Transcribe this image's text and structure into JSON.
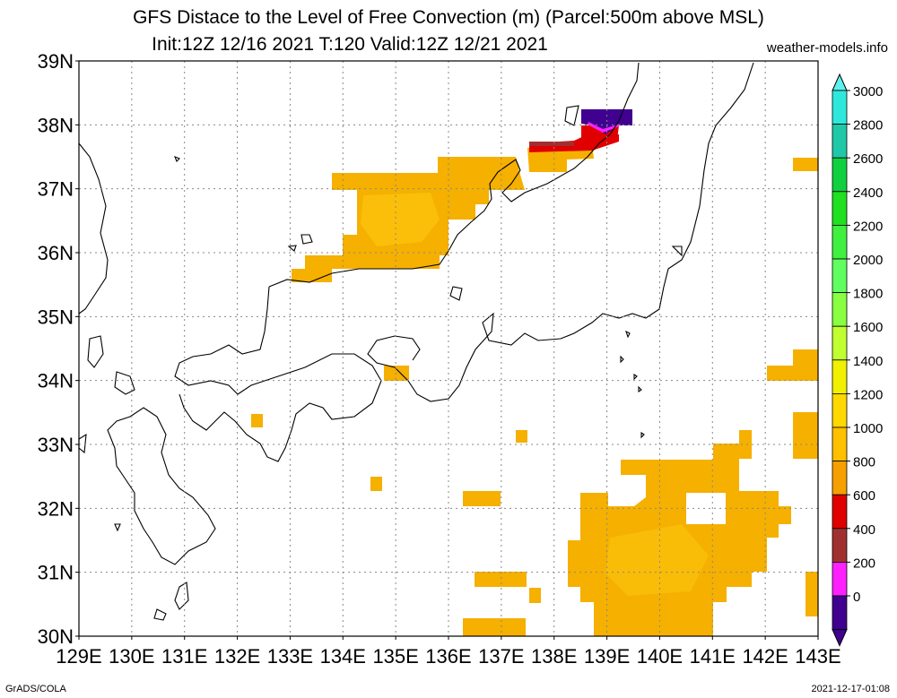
{
  "title": {
    "line1": "GFS Distace to the Level of Free Convection (m) (Parcel:500m above MSL)",
    "line2": "Init:12Z 12/16 2021 T:120 Valid:12Z 12/21 2021"
  },
  "site": "weather-models.info",
  "footer": {
    "left": "GrADS/COLA",
    "right": "2021-12-17-01:08"
  },
  "map": {
    "lon_labels": [
      "129E",
      "130E",
      "131E",
      "132E",
      "133E",
      "134E",
      "135E",
      "136E",
      "137E",
      "138E",
      "139E",
      "140E",
      "141E",
      "142E",
      "143E"
    ],
    "lat_labels": [
      "39N",
      "38N",
      "37N",
      "36N",
      "35N",
      "34N",
      "33N",
      "32N",
      "31N",
      "30N"
    ],
    "lon_range": [
      129,
      143
    ],
    "lat_range": [
      30,
      39
    ],
    "grid": "dotted"
  },
  "colorbar": {
    "labels": [
      "3000",
      "2800",
      "2600",
      "2400",
      "2200",
      "2000",
      "1800",
      "1600",
      "1400",
      "1200",
      "1000",
      "800",
      "600",
      "400",
      "200",
      "0"
    ],
    "colors": [
      "#2fe8dc",
      "#20c8a8",
      "#10d040",
      "#20e020",
      "#40f040",
      "#60ff60",
      "#88ff40",
      "#c0ff30",
      "#f0f000",
      "#ffd800",
      "#ffc000",
      "#f5a000",
      "#e00000",
      "#a03030",
      "#ff20ff",
      "#400090"
    ],
    "top_color": "#60f0f0",
    "bottom_color": "#400090"
  },
  "fields": {
    "orange": "#f5b000",
    "light": "#ffcc10",
    "red": "#e00000",
    "brown": "#a03030",
    "magenta": "#ff20ff",
    "purple": "#400090"
  }
}
